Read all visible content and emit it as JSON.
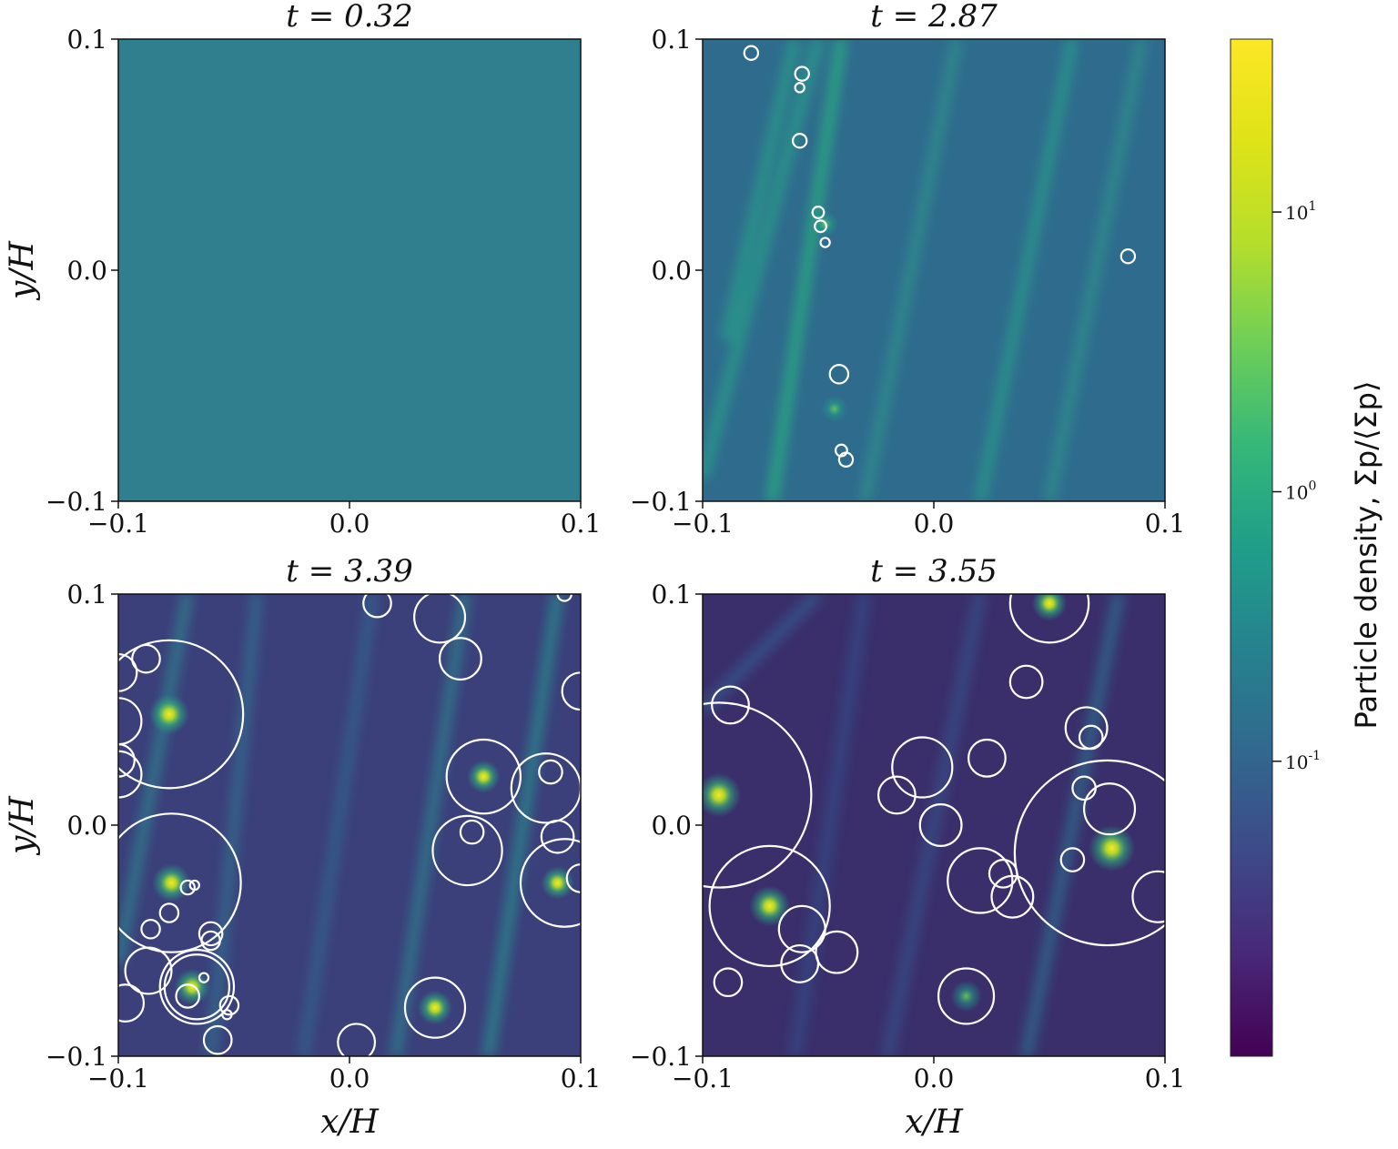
{
  "chart_data": {
    "type": "heatmap",
    "colorbar": {
      "label": "Particle density, Σp/⟨Σp⟩",
      "scale": "log",
      "colormap": "viridis",
      "ticks": [
        "10^1",
        "10^0",
        "10^-1"
      ]
    },
    "axis_ticks": [
      "−0.1",
      "0.0",
      "0.1"
    ],
    "ylabel": "y/H",
    "xlabel": "x/H",
    "xlim": [
      -0.1,
      0.1
    ],
    "ylim": [
      -0.1,
      0.1
    ],
    "panels": [
      {
        "title": "t = 0.32",
        "background": "#2f7f8e",
        "streaks": [],
        "clumps": [],
        "circles": []
      },
      {
        "title": "t = 2.87",
        "background": "#2f6b8d",
        "streaks": [
          {
            "x1": -0.1,
            "y1": -0.09,
            "x2": -0.05,
            "y2": 0.1,
            "color": "#2a9c8a"
          },
          {
            "x1": -0.07,
            "y1": -0.1,
            "x2": -0.04,
            "y2": 0.1,
            "color": "#26ad81"
          },
          {
            "x1": -0.03,
            "y1": -0.1,
            "x2": 0.01,
            "y2": 0.1,
            "color": "#2e8f8c"
          },
          {
            "x1": 0.02,
            "y1": -0.1,
            "x2": 0.06,
            "y2": 0.1,
            "color": "#2a9a8b"
          },
          {
            "x1": 0.05,
            "y1": -0.1,
            "x2": 0.09,
            "y2": 0.1,
            "color": "#2e8f8c"
          },
          {
            "x1": -0.09,
            "y1": -0.03,
            "x2": -0.06,
            "y2": 0.1,
            "color": "#2a9c8a"
          }
        ],
        "clumps": [
          {
            "x": -0.047,
            "y": 0.02,
            "value": 1.5
          },
          {
            "x": -0.043,
            "y": -0.06,
            "value": 1.5
          }
        ],
        "circles": [
          {
            "x": -0.079,
            "y": 0.094,
            "r": 0.003
          },
          {
            "x": -0.057,
            "y": 0.085,
            "r": 0.003
          },
          {
            "x": -0.058,
            "y": 0.079,
            "r": 0.002
          },
          {
            "x": -0.058,
            "y": 0.056,
            "r": 0.003
          },
          {
            "x": -0.05,
            "y": 0.025,
            "r": 0.0025
          },
          {
            "x": -0.049,
            "y": 0.019,
            "r": 0.0025
          },
          {
            "x": -0.047,
            "y": 0.012,
            "r": 0.002
          },
          {
            "x": 0.084,
            "y": 0.006,
            "r": 0.003
          },
          {
            "x": -0.041,
            "y": -0.045,
            "r": 0.004
          },
          {
            "x": -0.04,
            "y": -0.078,
            "r": 0.0025
          },
          {
            "x": -0.038,
            "y": -0.082,
            "r": 0.003
          }
        ]
      },
      {
        "title": "t = 3.39",
        "background": "#3b3f7a",
        "streaks": [
          {
            "x1": -0.1,
            "y1": -0.06,
            "x2": -0.07,
            "y2": 0.1,
            "color": "#2d7f8e"
          },
          {
            "x1": -0.06,
            "y1": -0.1,
            "x2": -0.04,
            "y2": 0.1,
            "color": "#306c8e"
          },
          {
            "x1": -0.02,
            "y1": -0.1,
            "x2": 0.01,
            "y2": 0.1,
            "color": "#31638d"
          },
          {
            "x1": 0.02,
            "y1": -0.1,
            "x2": 0.05,
            "y2": 0.1,
            "color": "#2d7f8e"
          },
          {
            "x1": 0.06,
            "y1": -0.1,
            "x2": 0.09,
            "y2": 0.1,
            "color": "#2a8b8d"
          }
        ],
        "clumps": [
          {
            "x": -0.078,
            "y": 0.048,
            "value": 10
          },
          {
            "x": -0.077,
            "y": -0.025,
            "value": 8
          },
          {
            "x": -0.068,
            "y": -0.07,
            "value": 6
          },
          {
            "x": 0.037,
            "y": -0.079,
            "value": 5
          },
          {
            "x": 0.058,
            "y": 0.021,
            "value": 4
          },
          {
            "x": 0.09,
            "y": -0.025,
            "value": 4
          }
        ],
        "circles": [
          {
            "x": -0.078,
            "y": 0.048,
            "r": 0.032
          },
          {
            "x": -0.088,
            "y": 0.072,
            "r": 0.006
          },
          {
            "x": -0.1,
            "y": 0.066,
            "r": 0.008
          },
          {
            "x": -0.1,
            "y": 0.045,
            "r": 0.01
          },
          {
            "x": -0.1,
            "y": 0.028,
            "r": 0.007
          },
          {
            "x": -0.1,
            "y": 0.022,
            "r": 0.01
          },
          {
            "x": -0.077,
            "y": -0.025,
            "r": 0.03
          },
          {
            "x": -0.07,
            "y": -0.027,
            "r": 0.003
          },
          {
            "x": -0.067,
            "y": -0.026,
            "r": 0.002
          },
          {
            "x": -0.078,
            "y": -0.038,
            "r": 0.004
          },
          {
            "x": -0.086,
            "y": -0.045,
            "r": 0.004
          },
          {
            "x": -0.06,
            "y": -0.047,
            "r": 0.005
          },
          {
            "x": -0.06,
            "y": -0.05,
            "r": 0.004
          },
          {
            "x": -0.066,
            "y": -0.07,
            "r": 0.016
          },
          {
            "x": -0.066,
            "y": -0.07,
            "r": 0.014
          },
          {
            "x": -0.063,
            "y": -0.066,
            "r": 0.002
          },
          {
            "x": -0.07,
            "y": -0.074,
            "r": 0.005
          },
          {
            "x": -0.087,
            "y": -0.063,
            "r": 0.01
          },
          {
            "x": -0.097,
            "y": -0.077,
            "r": 0.008
          },
          {
            "x": -0.052,
            "y": -0.078,
            "r": 0.004
          },
          {
            "x": -0.053,
            "y": -0.082,
            "r": 0.002
          },
          {
            "x": -0.057,
            "y": -0.093,
            "r": 0.006
          },
          {
            "x": 0.012,
            "y": 0.096,
            "r": 0.006
          },
          {
            "x": 0.039,
            "y": 0.09,
            "r": 0.011
          },
          {
            "x": 0.048,
            "y": 0.072,
            "r": 0.009
          },
          {
            "x": 0.093,
            "y": 0.1,
            "r": 0.003
          },
          {
            "x": 0.1,
            "y": 0.058,
            "r": 0.008
          },
          {
            "x": 0.058,
            "y": 0.021,
            "r": 0.016
          },
          {
            "x": 0.087,
            "y": 0.023,
            "r": 0.005
          },
          {
            "x": 0.085,
            "y": 0.016,
            "r": 0.015
          },
          {
            "x": 0.053,
            "y": -0.003,
            "r": 0.005
          },
          {
            "x": 0.051,
            "y": -0.011,
            "r": 0.015
          },
          {
            "x": 0.09,
            "y": -0.005,
            "r": 0.007
          },
          {
            "x": 0.093,
            "y": -0.025,
            "r": 0.019
          },
          {
            "x": 0.1,
            "y": -0.023,
            "r": 0.006
          },
          {
            "x": 0.037,
            "y": -0.079,
            "r": 0.013
          },
          {
            "x": 0.003,
            "y": -0.094,
            "r": 0.008
          }
        ]
      },
      {
        "title": "t = 3.55",
        "background": "#3a2f6b",
        "streaks": [
          {
            "x1": -0.1,
            "y1": 0.05,
            "x2": -0.05,
            "y2": 0.1,
            "color": "#35568c"
          },
          {
            "x1": -0.06,
            "y1": -0.1,
            "x2": -0.03,
            "y2": 0.1,
            "color": "#334a87"
          },
          {
            "x1": -0.02,
            "y1": -0.1,
            "x2": 0.02,
            "y2": 0.1,
            "color": "#34508a"
          },
          {
            "x1": 0.04,
            "y1": -0.1,
            "x2": 0.08,
            "y2": 0.1,
            "color": "#2f6b8d"
          }
        ],
        "clumps": [
          {
            "x": -0.093,
            "y": 0.013,
            "value": 15
          },
          {
            "x": -0.071,
            "y": -0.035,
            "value": 10
          },
          {
            "x": 0.077,
            "y": -0.01,
            "value": 20
          },
          {
            "x": 0.05,
            "y": 0.096,
            "value": 5
          },
          {
            "x": 0.014,
            "y": -0.074,
            "value": 3
          }
        ],
        "circles": [
          {
            "x": 0.05,
            "y": 0.096,
            "r": 0.017
          },
          {
            "x": 0.04,
            "y": 0.062,
            "r": 0.007
          },
          {
            "x": -0.088,
            "y": 0.052,
            "r": 0.008
          },
          {
            "x": -0.093,
            "y": 0.013,
            "r": 0.04
          },
          {
            "x": 0.066,
            "y": 0.042,
            "r": 0.009
          },
          {
            "x": 0.068,
            "y": 0.038,
            "r": 0.005
          },
          {
            "x": -0.005,
            "y": 0.025,
            "r": 0.013
          },
          {
            "x": 0.023,
            "y": 0.029,
            "r": 0.008
          },
          {
            "x": -0.016,
            "y": 0.013,
            "r": 0.008
          },
          {
            "x": 0.003,
            "y": -0.0,
            "r": 0.009
          },
          {
            "x": 0.065,
            "y": 0.016,
            "r": 0.005
          },
          {
            "x": 0.076,
            "y": 0.007,
            "r": 0.011
          },
          {
            "x": 0.075,
            "y": -0.012,
            "r": 0.04
          },
          {
            "x": 0.06,
            "y": -0.015,
            "r": 0.005
          },
          {
            "x": 0.02,
            "y": -0.024,
            "r": 0.014
          },
          {
            "x": 0.03,
            "y": -0.021,
            "r": 0.006
          },
          {
            "x": 0.034,
            "y": -0.031,
            "r": 0.009
          },
          {
            "x": 0.097,
            "y": -0.031,
            "r": 0.011
          },
          {
            "x": -0.071,
            "y": -0.035,
            "r": 0.026
          },
          {
            "x": -0.057,
            "y": -0.045,
            "r": 0.01
          },
          {
            "x": -0.042,
            "y": -0.055,
            "r": 0.009
          },
          {
            "x": -0.058,
            "y": -0.06,
            "r": 0.008
          },
          {
            "x": -0.089,
            "y": -0.068,
            "r": 0.006
          },
          {
            "x": 0.014,
            "y": -0.074,
            "r": 0.012
          }
        ]
      }
    ]
  }
}
